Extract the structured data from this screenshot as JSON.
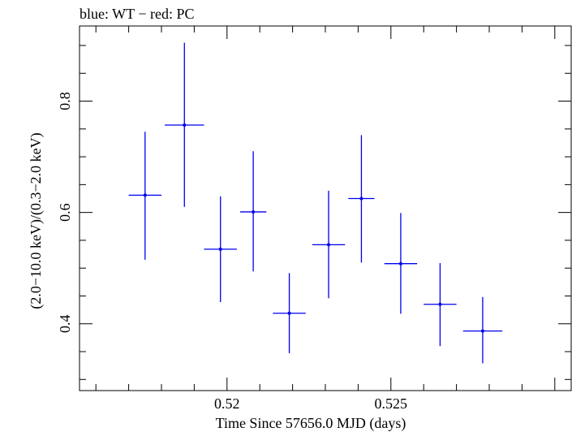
{
  "chart_data": {
    "type": "scatter",
    "title": "blue: WT − red: PC",
    "xlabel": "Time Since 57656.0 MJD (days)",
    "ylabel": "(2.0−10.0 keV)/(0.3−2.0 keV)",
    "xlim": [
      0.5155,
      0.5305
    ],
    "ylim": [
      0.28,
      0.935
    ],
    "x_ticks": [
      0.52,
      0.525
    ],
    "x_tick_labels": [
      "0.52",
      "0.525"
    ],
    "y_ticks": [
      0.4,
      0.6,
      0.8
    ],
    "y_tick_labels": [
      "0.4",
      "0.6",
      "0.8"
    ],
    "series": [
      {
        "color": "#0000ee",
        "points": [
          {
            "x": 0.5175,
            "xerr": 0.0005,
            "y": 0.631,
            "yerr_low": 0.116,
            "yerr_high": 0.114
          },
          {
            "x": 0.5187,
            "xerr": 0.0006,
            "y": 0.757,
            "yerr_low": 0.147,
            "yerr_high": 0.148
          },
          {
            "x": 0.5198,
            "xerr": 0.0005,
            "y": 0.534,
            "yerr_low": 0.095,
            "yerr_high": 0.095
          },
          {
            "x": 0.5208,
            "xerr": 0.0004,
            "y": 0.601,
            "yerr_low": 0.107,
            "yerr_high": 0.109
          },
          {
            "x": 0.5219,
            "xerr": 0.0005,
            "y": 0.419,
            "yerr_low": 0.072,
            "yerr_high": 0.072
          },
          {
            "x": 0.5231,
            "xerr": 0.0005,
            "y": 0.542,
            "yerr_low": 0.096,
            "yerr_high": 0.097
          },
          {
            "x": 0.5241,
            "xerr": 0.0004,
            "y": 0.625,
            "yerr_low": 0.115,
            "yerr_high": 0.114
          },
          {
            "x": 0.5253,
            "xerr": 0.0005,
            "y": 0.508,
            "yerr_low": 0.09,
            "yerr_high": 0.091
          },
          {
            "x": 0.5265,
            "xerr": 0.0005,
            "y": 0.435,
            "yerr_low": 0.075,
            "yerr_high": 0.074
          },
          {
            "x": 0.5278,
            "xerr": 0.0006,
            "y": 0.387,
            "yerr_low": 0.058,
            "yerr_high": 0.061
          }
        ]
      }
    ]
  }
}
